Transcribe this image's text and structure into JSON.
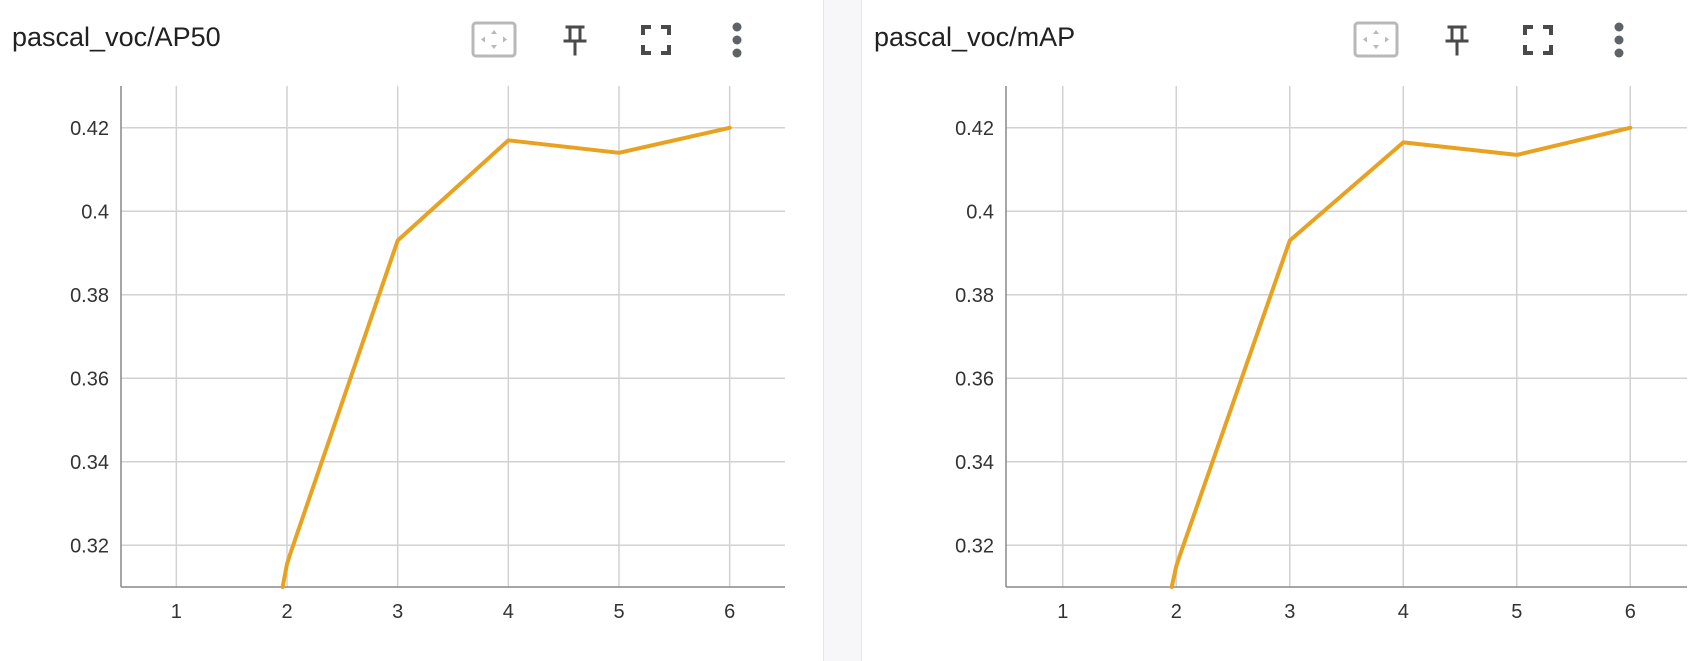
{
  "colors": {
    "series": "#e8a21f",
    "grid": "#d2d2d2",
    "axis": "#888888",
    "icon": "#5f6368",
    "divider": "#f7f7f9"
  },
  "cards": [
    {
      "title": "pascal_voc/AP50",
      "icons": [
        "fit-domain-icon",
        "pin-icon",
        "fullscreen-icon",
        "more-vert-icon"
      ]
    },
    {
      "title": "pascal_voc/mAP",
      "icons": [
        "fit-domain-icon",
        "pin-icon",
        "fullscreen-icon",
        "more-vert-icon"
      ]
    }
  ],
  "chart_data": [
    {
      "type": "line",
      "title": "pascal_voc/AP50",
      "xlabel": "",
      "ylabel": "",
      "x": [
        1.96,
        2.0,
        2.03,
        3,
        4,
        5,
        6
      ],
      "series": [
        {
          "values": [
            0.31,
            0.3155,
            0.318,
            0.393,
            0.417,
            0.414,
            0.42
          ]
        }
      ],
      "xlim": [
        0.5,
        6.5
      ],
      "ylim": [
        0.31,
        0.43
      ],
      "xticks": [
        "1",
        "2",
        "3",
        "4",
        "5",
        "6"
      ],
      "yticks": [
        "0.32",
        "0.34",
        "0.36",
        "0.38",
        "0.4",
        "0.42"
      ],
      "grid": true,
      "legend": "none"
    },
    {
      "type": "line",
      "title": "pascal_voc/mAP",
      "xlabel": "",
      "ylabel": "",
      "x": [
        1.96,
        2.0,
        2.03,
        3,
        4,
        5,
        6
      ],
      "series": [
        {
          "values": [
            0.31,
            0.315,
            0.3175,
            0.393,
            0.4165,
            0.4135,
            0.42
          ]
        }
      ],
      "xlim": [
        0.5,
        6.5
      ],
      "ylim": [
        0.31,
        0.43
      ],
      "xticks": [
        "1",
        "2",
        "3",
        "4",
        "5",
        "6"
      ],
      "yticks": [
        "0.32",
        "0.34",
        "0.36",
        "0.38",
        "0.4",
        "0.42"
      ],
      "grid": true,
      "legend": "none"
    }
  ]
}
